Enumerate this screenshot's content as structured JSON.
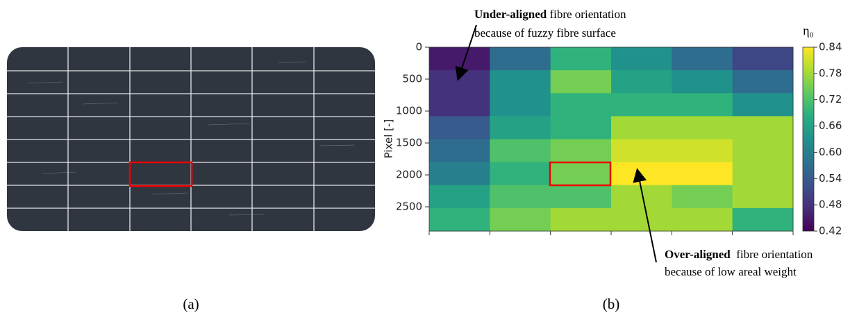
{
  "chart_data": {
    "type": "heatmap",
    "y_label": "Pixel [-]",
    "ylim": [
      0,
      2880
    ],
    "yticks": [
      0,
      500,
      1000,
      1500,
      2000,
      2500
    ],
    "values": [
      [
        0.45,
        0.57,
        0.69,
        0.63,
        0.57,
        0.51
      ],
      [
        0.48,
        0.63,
        0.75,
        0.66,
        0.63,
        0.57
      ],
      [
        0.48,
        0.63,
        0.69,
        0.69,
        0.69,
        0.63
      ],
      [
        0.54,
        0.66,
        0.69,
        0.78,
        0.78,
        0.78
      ],
      [
        0.57,
        0.72,
        0.75,
        0.81,
        0.81,
        0.78
      ],
      [
        0.6,
        0.69,
        0.75,
        0.84,
        0.84,
        0.78
      ],
      [
        0.66,
        0.72,
        0.72,
        0.78,
        0.75,
        0.78
      ],
      [
        0.69,
        0.75,
        0.78,
        0.78,
        0.78,
        0.69
      ]
    ],
    "colorbar_label": "η₀",
    "clim": [
      0.42,
      0.84
    ],
    "cticks": [
      0.42,
      0.48,
      0.54,
      {
        "value": 0.6,
        "label": "0.60"
      },
      0.66,
      0.72,
      0.78,
      0.84
    ],
    "colormap": [
      "#440154",
      "#472d7b",
      "#3b528b",
      "#2c728e",
      "#21918c",
      "#28ae80",
      "#5ec962",
      "#addc30",
      "#fde725"
    ],
    "annotations": [
      {
        "bold": "Under-aligned",
        "text": " fibre orientation",
        "line2": "because of fuzzy fibre surface"
      },
      {
        "bold": "Over-aligned",
        "text": "  fibre orientation",
        "line2": "because of low areal weight"
      }
    ],
    "panel_labels": [
      "(a)",
      "(b)"
    ]
  }
}
